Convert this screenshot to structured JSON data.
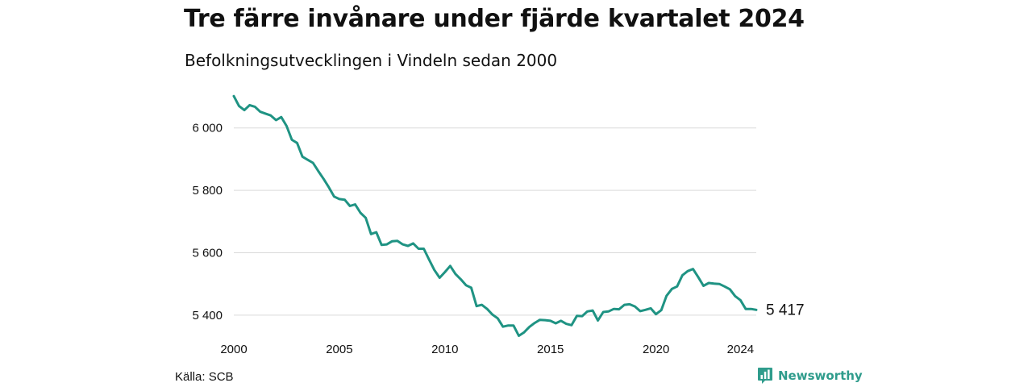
{
  "header": {
    "title": "Tre färre invånare under fjärde kvartalet 2024",
    "subtitle": "Befolkningsutvecklingen i Vindeln sedan 2000"
  },
  "footer": {
    "source": "Källa: SCB",
    "brand": "Newsworthy",
    "brand_icon": "bar-chart-logo-icon"
  },
  "colors": {
    "line": "#1f9383",
    "grid": "#d9d9d9",
    "brand": "#2f9c8c"
  },
  "chart_data": {
    "type": "line",
    "title": "Tre färre invånare under fjärde kvartalet 2024",
    "subtitle": "Befolkningsutvecklingen i Vindeln sedan 2000",
    "xlabel": "",
    "ylabel": "",
    "grid": true,
    "legend": "none",
    "xlim": [
      2000,
      2024.75
    ],
    "ylim": [
      5330,
      6100
    ],
    "x_ticks": [
      2000,
      2005,
      2010,
      2015,
      2020,
      2024
    ],
    "x_tick_labels": [
      "2000",
      "2005",
      "2010",
      "2015",
      "2020",
      "2024"
    ],
    "y_ticks": [
      5400,
      5600,
      5800,
      6000
    ],
    "y_tick_labels": [
      "5 400",
      "5 600",
      "5 800",
      "6 000"
    ],
    "end_label": "5 417",
    "series": [
      {
        "x": [
          2000.0,
          2000.25,
          2000.5,
          2000.75,
          2001.0,
          2001.25,
          2001.5,
          2001.75,
          2002.0,
          2002.25,
          2002.5,
          2002.75,
          2003.0,
          2003.25,
          2003.5,
          2003.75,
          2004.0,
          2004.25,
          2004.5,
          2004.75,
          2005.0,
          2005.25,
          2005.5,
          2005.75,
          2006.0,
          2006.25,
          2006.5,
          2006.75,
          2007.0,
          2007.25,
          2007.5,
          2007.75,
          2008.0,
          2008.25,
          2008.5,
          2008.75,
          2009.0,
          2009.25,
          2009.5,
          2009.75,
          2010.0,
          2010.25,
          2010.5,
          2010.75,
          2011.0,
          2011.25,
          2011.5,
          2011.75,
          2012.0,
          2012.25,
          2012.5,
          2012.75,
          2013.0,
          2013.25,
          2013.5,
          2013.75,
          2014.0,
          2014.25,
          2014.5,
          2014.75,
          2015.0,
          2015.25,
          2015.5,
          2015.75,
          2016.0,
          2016.25,
          2016.5,
          2016.75,
          2017.0,
          2017.25,
          2017.5,
          2017.75,
          2018.0,
          2018.25,
          2018.5,
          2018.75,
          2019.0,
          2019.25,
          2019.5,
          2019.75,
          2020.0,
          2020.25,
          2020.5,
          2020.75,
          2021.0,
          2021.25,
          2021.5,
          2021.75,
          2022.0,
          2022.25,
          2022.5,
          2022.75,
          2023.0,
          2023.25,
          2023.5,
          2023.75,
          2024.0,
          2024.25,
          2024.5,
          2024.75
        ],
        "values": [
          6102,
          6070,
          6057,
          6073,
          6068,
          6052,
          6046,
          6040,
          6025,
          6035,
          6006,
          5962,
          5952,
          5908,
          5898,
          5888,
          5862,
          5837,
          5810,
          5780,
          5772,
          5770,
          5750,
          5755,
          5728,
          5712,
          5660,
          5666,
          5625,
          5627,
          5637,
          5638,
          5627,
          5622,
          5630,
          5613,
          5613,
          5578,
          5545,
          5520,
          5538,
          5558,
          5532,
          5515,
          5496,
          5488,
          5429,
          5433,
          5420,
          5402,
          5390,
          5363,
          5367,
          5367,
          5334,
          5345,
          5362,
          5375,
          5385,
          5384,
          5382,
          5374,
          5382,
          5372,
          5368,
          5398,
          5397,
          5412,
          5415,
          5383,
          5410,
          5412,
          5420,
          5419,
          5433,
          5435,
          5428,
          5413,
          5417,
          5422,
          5403,
          5416,
          5462,
          5484,
          5492,
          5528,
          5541,
          5548,
          5522,
          5494,
          5503,
          5501,
          5500,
          5492,
          5483,
          5461,
          5448,
          5420,
          5420,
          5417
        ]
      }
    ]
  }
}
